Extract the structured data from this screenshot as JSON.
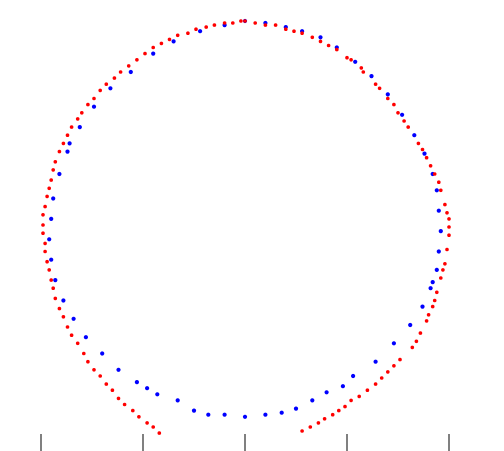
{
  "chart_data": {
    "type": "scatter",
    "title": "",
    "xlabel": "",
    "ylabel": "",
    "xlim": [
      -1.05,
      1.12
    ],
    "ylim": [
      -1.12,
      1.0
    ],
    "grid": false,
    "legend": "none",
    "x_ticks": [
      -1.0,
      -0.5,
      0.0,
      0.5,
      1.0
    ],
    "series": [
      {
        "color": "#0000ff",
        "points": [
          [
            0.0,
            1.0
          ],
          [
            0.1,
            0.99
          ],
          [
            0.2,
            0.97
          ],
          [
            0.28,
            0.95
          ],
          [
            0.37,
            0.92
          ],
          [
            0.45,
            0.87
          ],
          [
            0.54,
            0.8
          ],
          [
            0.62,
            0.73
          ],
          [
            0.7,
            0.64
          ],
          [
            0.77,
            0.54
          ],
          [
            0.83,
            0.44
          ],
          [
            0.88,
            0.35
          ],
          [
            0.92,
            0.25
          ],
          [
            0.94,
            0.17
          ],
          [
            0.95,
            0.07
          ],
          [
            0.96,
            -0.03
          ],
          [
            0.95,
            -0.13
          ],
          [
            0.94,
            -0.22
          ],
          [
            0.91,
            -0.31
          ],
          [
            0.87,
            -0.4
          ],
          [
            0.81,
            -0.49
          ],
          [
            0.73,
            -0.58
          ],
          [
            0.64,
            -0.67
          ],
          [
            0.53,
            -0.74
          ],
          [
            0.4,
            -0.82
          ],
          [
            0.33,
            -0.86
          ],
          [
            0.25,
            -0.9
          ],
          [
            0.18,
            -0.92
          ],
          [
            0.1,
            -0.93
          ],
          [
            0.0,
            -0.94
          ],
          [
            -0.1,
            -0.93
          ],
          [
            -0.18,
            -0.93
          ],
          [
            -0.25,
            -0.91
          ],
          [
            -0.33,
            -0.86
          ],
          [
            -0.43,
            -0.83
          ],
          [
            -0.53,
            -0.77
          ],
          [
            -0.62,
            -0.71
          ],
          [
            -0.7,
            -0.63
          ],
          [
            -0.78,
            -0.55
          ],
          [
            -0.84,
            -0.46
          ],
          [
            -0.89,
            -0.37
          ],
          [
            -0.93,
            -0.27
          ],
          [
            -0.95,
            -0.17
          ],
          [
            -0.96,
            -0.07
          ],
          [
            -0.95,
            0.03
          ],
          [
            -0.94,
            0.13
          ],
          [
            -0.91,
            0.25
          ],
          [
            -0.87,
            0.36
          ],
          [
            -0.81,
            0.48
          ],
          [
            -0.74,
            0.58
          ],
          [
            -0.66,
            0.67
          ],
          [
            -0.56,
            0.75
          ],
          [
            -0.45,
            0.84
          ],
          [
            -0.35,
            0.9
          ],
          [
            -0.22,
            0.95
          ],
          [
            -0.1,
            0.98
          ],
          [
            -0.86,
            0.4
          ],
          [
            0.48,
            -0.79
          ],
          [
            -0.48,
            -0.8
          ],
          [
            0.92,
            -0.28
          ]
        ]
      },
      {
        "color": "#ff0000",
        "points": [
          [
            0.0,
            1.0
          ],
          [
            0.1,
            0.98
          ],
          [
            0.2,
            0.96
          ],
          [
            0.28,
            0.94
          ],
          [
            0.37,
            0.9
          ],
          [
            0.45,
            0.86
          ],
          [
            0.52,
            0.81
          ],
          [
            0.58,
            0.75
          ],
          [
            0.64,
            0.69
          ],
          [
            0.7,
            0.62
          ],
          [
            0.75,
            0.55
          ],
          [
            0.8,
            0.48
          ],
          [
            0.85,
            0.4
          ],
          [
            0.89,
            0.33
          ],
          [
            0.93,
            0.25
          ],
          [
            0.96,
            0.17
          ],
          [
            0.98,
            0.1
          ],
          [
            1.0,
            0.03
          ],
          [
            1.0,
            -0.05
          ],
          [
            0.99,
            -0.12
          ],
          [
            0.98,
            -0.19
          ],
          [
            0.96,
            -0.26
          ],
          [
            0.94,
            -0.33
          ],
          [
            0.92,
            -0.4
          ],
          [
            0.89,
            -0.47
          ],
          [
            0.86,
            -0.53
          ],
          [
            0.82,
            -0.6
          ],
          [
            0.76,
            -0.66
          ],
          [
            0.7,
            -0.72
          ],
          [
            0.64,
            -0.78
          ],
          [
            0.56,
            -0.84
          ],
          [
            0.49,
            -0.89
          ],
          [
            0.43,
            -0.93
          ],
          [
            0.36,
            -0.97
          ],
          [
            0.28,
            -1.01
          ],
          [
            -0.42,
            -1.02
          ],
          [
            -0.48,
            -0.97
          ],
          [
            -0.55,
            -0.91
          ],
          [
            -0.62,
            -0.85
          ],
          [
            -0.68,
            -0.78
          ],
          [
            -0.74,
            -0.71
          ],
          [
            -0.79,
            -0.63
          ],
          [
            -0.85,
            -0.54
          ],
          [
            -0.89,
            -0.45
          ],
          [
            -0.93,
            -0.36
          ],
          [
            -0.95,
            -0.27
          ],
          [
            -0.97,
            -0.18
          ],
          [
            -0.98,
            -0.09
          ],
          [
            -0.99,
            0.0
          ],
          [
            -0.98,
            0.09
          ],
          [
            -0.96,
            0.18
          ],
          [
            -0.94,
            0.27
          ],
          [
            -0.91,
            0.36
          ],
          [
            -0.87,
            0.44
          ],
          [
            -0.82,
            0.52
          ],
          [
            -0.77,
            0.59
          ],
          [
            -0.71,
            0.66
          ],
          [
            -0.64,
            0.72
          ],
          [
            -0.57,
            0.78
          ],
          [
            -0.49,
            0.84
          ],
          [
            -0.41,
            0.89
          ],
          [
            -0.33,
            0.93
          ],
          [
            -0.24,
            0.96
          ],
          [
            -0.15,
            0.98
          ],
          [
            -0.06,
            0.99
          ],
          [
            0.05,
            0.99
          ],
          [
            0.15,
            0.98
          ],
          [
            0.24,
            0.95
          ],
          [
            0.33,
            0.92
          ],
          [
            0.41,
            0.88
          ],
          [
            0.5,
            0.82
          ],
          [
            0.57,
            0.77
          ],
          [
            0.66,
            0.67
          ],
          [
            0.73,
            0.59
          ],
          [
            0.78,
            0.51
          ],
          [
            0.87,
            0.37
          ],
          [
            0.91,
            0.29
          ],
          [
            0.95,
            0.21
          ],
          [
            0.99,
            0.06
          ],
          [
            1.0,
            -0.01
          ],
          [
            0.97,
            -0.22
          ],
          [
            0.93,
            -0.37
          ],
          [
            0.9,
            -0.44
          ],
          [
            0.84,
            -0.57
          ],
          [
            0.73,
            -0.69
          ],
          [
            0.67,
            -0.75
          ],
          [
            0.6,
            -0.81
          ],
          [
            0.52,
            -0.86
          ],
          [
            0.46,
            -0.91
          ],
          [
            0.39,
            -0.95
          ],
          [
            0.32,
            -0.99
          ],
          [
            -0.45,
            -0.99
          ],
          [
            -0.52,
            -0.94
          ],
          [
            -0.59,
            -0.88
          ],
          [
            -0.65,
            -0.81
          ],
          [
            -0.71,
            -0.74
          ],
          [
            -0.77,
            -0.67
          ],
          [
            -0.82,
            -0.58
          ],
          [
            -0.87,
            -0.5
          ],
          [
            -0.91,
            -0.41
          ],
          [
            -0.94,
            -0.31
          ],
          [
            -0.96,
            -0.22
          ],
          [
            -0.98,
            -0.13
          ],
          [
            -0.99,
            -0.04
          ],
          [
            -0.99,
            0.05
          ],
          [
            -0.97,
            0.14
          ],
          [
            -0.95,
            0.22
          ],
          [
            -0.93,
            0.31
          ],
          [
            -0.89,
            0.4
          ],
          [
            -0.85,
            0.48
          ],
          [
            -0.8,
            0.55
          ],
          [
            -0.74,
            0.62
          ],
          [
            -0.68,
            0.69
          ],
          [
            -0.61,
            0.75
          ],
          [
            -0.53,
            0.81
          ],
          [
            -0.45,
            0.87
          ],
          [
            -0.37,
            0.91
          ],
          [
            -0.28,
            0.94
          ],
          [
            -0.19,
            0.97
          ],
          [
            -0.1,
            0.99
          ],
          [
            -0.02,
            1.0
          ]
        ]
      }
    ]
  }
}
